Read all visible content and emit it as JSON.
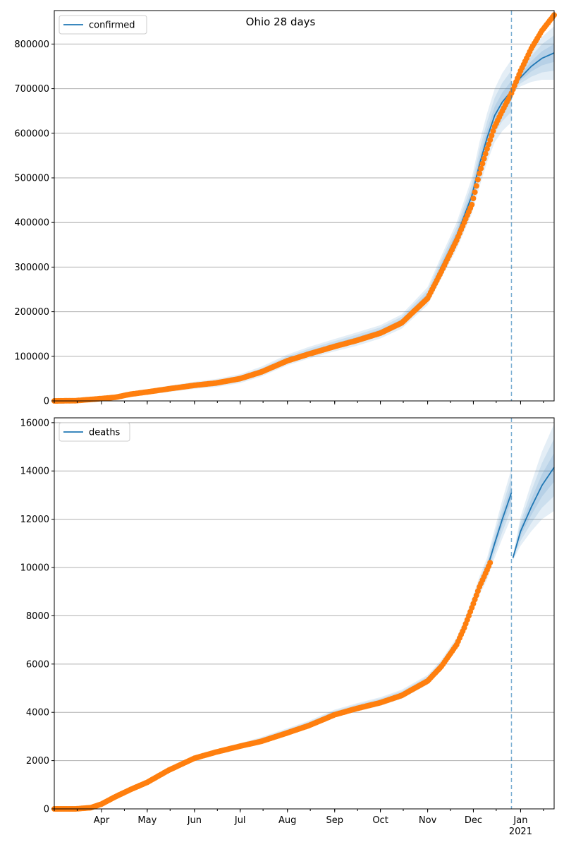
{
  "title": "Ohio 28 days",
  "colors": {
    "model": "#1f77b4",
    "observed": "#ff7f0e",
    "band": "#1f77b4",
    "grid": "#b0b0b0",
    "vline": "#1f77b4"
  },
  "chart_data": [
    {
      "type": "line",
      "panel": "top",
      "legend": "confirmed",
      "legend_placement": "top-left",
      "ylim": [
        0,
        875000
      ],
      "yticks": [
        0,
        100000,
        200000,
        300000,
        400000,
        500000,
        600000,
        700000,
        800000
      ],
      "ytick_labels": [
        "0",
        "100000",
        "200000",
        "300000",
        "400000",
        "500000",
        "600000",
        "700000",
        "800000"
      ],
      "grid": "horizontal",
      "forecast_start": "2020-12-26",
      "observed": {
        "x": [
          "2020-03-01",
          "2020-03-15",
          "2020-03-31",
          "2020-04-10",
          "2020-04-20",
          "2020-05-01",
          "2020-05-15",
          "2020-06-01",
          "2020-06-15",
          "2020-07-01",
          "2020-07-15",
          "2020-08-01",
          "2020-08-15",
          "2020-09-01",
          "2020-09-15",
          "2020-10-01",
          "2020-10-15",
          "2020-11-01",
          "2020-11-10",
          "2020-11-20",
          "2020-11-30",
          "2020-12-05",
          "2020-12-10",
          "2020-12-15",
          "2020-12-20",
          "2020-12-26",
          "2021-01-01",
          "2021-01-08",
          "2021-01-15",
          "2021-01-23"
        ],
        "y": [
          0,
          500,
          5000,
          8000,
          15000,
          20000,
          27000,
          35000,
          40000,
          50000,
          65000,
          90000,
          105000,
          122000,
          135000,
          152000,
          175000,
          230000,
          290000,
          360000,
          440000,
          510000,
          565000,
          615000,
          650000,
          690000,
          740000,
          790000,
          830000,
          865000
        ]
      },
      "fit": {
        "x": [
          "2020-03-01",
          "2020-03-15",
          "2020-03-31",
          "2020-04-10",
          "2020-04-20",
          "2020-05-01",
          "2020-05-15",
          "2020-06-01",
          "2020-06-15",
          "2020-07-01",
          "2020-07-15",
          "2020-08-01",
          "2020-08-15",
          "2020-09-01",
          "2020-09-15",
          "2020-10-01",
          "2020-10-15",
          "2020-11-01",
          "2020-11-10",
          "2020-11-20",
          "2020-11-30",
          "2020-12-05",
          "2020-12-10",
          "2020-12-15",
          "2020-12-20",
          "2020-12-26"
        ],
        "y": [
          0,
          500,
          5000,
          9000,
          15000,
          20000,
          27000,
          35000,
          40000,
          50000,
          66000,
          92000,
          108000,
          125000,
          138000,
          155000,
          178000,
          235000,
          300000,
          370000,
          460000,
          530000,
          590000,
          640000,
          670000,
          695000
        ],
        "band_half_width": [
          0,
          2000,
          3000,
          4000,
          5000,
          6000,
          7000,
          8000,
          9000,
          10000,
          11000,
          12000,
          13000,
          14000,
          15000,
          15000,
          16000,
          20000,
          25000,
          30000,
          40000,
          50000,
          55000,
          60000,
          65000,
          70000
        ]
      },
      "forecast": {
        "x": [
          "2020-12-26",
          "2021-01-01",
          "2021-01-08",
          "2021-01-15",
          "2021-01-23"
        ],
        "y": [
          700000,
          725000,
          750000,
          768000,
          780000
        ],
        "band_half_width": [
          10000,
          20000,
          35000,
          48000,
          60000
        ]
      }
    },
    {
      "type": "line",
      "panel": "bottom",
      "legend": "deaths",
      "legend_placement": "top-left",
      "ylim": [
        0,
        16200
      ],
      "yticks": [
        0,
        2000,
        4000,
        6000,
        8000,
        10000,
        12000,
        14000,
        16000
      ],
      "ytick_labels": [
        "0",
        "2000",
        "4000",
        "6000",
        "8000",
        "10000",
        "12000",
        "14000",
        "16000"
      ],
      "xticks": [
        "2020-04-01",
        "2020-05-01",
        "2020-06-01",
        "2020-07-01",
        "2020-08-01",
        "2020-09-01",
        "2020-10-01",
        "2020-11-01",
        "2020-12-01",
        "2021-01-01"
      ],
      "xtick_labels": [
        "Apr",
        "May",
        "Jun",
        "Jul",
        "Aug",
        "Sep",
        "Oct",
        "Nov",
        "Dec",
        "Jan"
      ],
      "xtick_year_label": "2021",
      "grid": "horizontal",
      "forecast_start": "2020-12-26",
      "observed": {
        "x": [
          "2020-03-01",
          "2020-03-15",
          "2020-03-25",
          "2020-04-01",
          "2020-04-10",
          "2020-04-20",
          "2020-05-01",
          "2020-05-15",
          "2020-06-01",
          "2020-06-15",
          "2020-07-01",
          "2020-07-15",
          "2020-08-01",
          "2020-08-15",
          "2020-09-01",
          "2020-09-15",
          "2020-10-01",
          "2020-10-15",
          "2020-11-01",
          "2020-11-10",
          "2020-11-20",
          "2020-11-25",
          "2020-12-01",
          "2020-12-05",
          "2020-12-10",
          "2020-12-12"
        ],
        "y": [
          0,
          0,
          50,
          200,
          500,
          800,
          1100,
          1600,
          2100,
          2350,
          2600,
          2800,
          3150,
          3450,
          3900,
          4150,
          4400,
          4700,
          5300,
          5900,
          6800,
          7500,
          8500,
          9200,
          9900,
          10200
        ]
      },
      "fit": {
        "x": [
          "2020-03-01",
          "2020-03-15",
          "2020-03-25",
          "2020-04-01",
          "2020-04-10",
          "2020-04-20",
          "2020-05-01",
          "2020-05-15",
          "2020-06-01",
          "2020-06-15",
          "2020-07-01",
          "2020-07-15",
          "2020-08-01",
          "2020-08-15",
          "2020-09-01",
          "2020-09-15",
          "2020-10-01",
          "2020-10-15",
          "2020-11-01",
          "2020-11-10",
          "2020-11-20",
          "2020-11-25",
          "2020-12-01",
          "2020-12-05",
          "2020-12-10",
          "2020-12-15",
          "2020-12-20",
          "2020-12-26"
        ],
        "y": [
          0,
          0,
          50,
          200,
          500,
          800,
          1100,
          1600,
          2100,
          2350,
          2600,
          2850,
          3200,
          3500,
          3950,
          4200,
          4450,
          4750,
          5350,
          5950,
          6850,
          7550,
          8550,
          9250,
          9950,
          11000,
          12000,
          13100
        ],
        "band_half_width": [
          0,
          20,
          40,
          60,
          80,
          100,
          100,
          100,
          100,
          110,
          120,
          130,
          140,
          150,
          160,
          170,
          180,
          190,
          200,
          220,
          250,
          280,
          320,
          380,
          450,
          600,
          800,
          1000
        ]
      },
      "forecast": {
        "x": [
          "2020-12-27",
          "2021-01-01",
          "2021-01-08",
          "2021-01-15",
          "2021-01-23"
        ],
        "y": [
          10400,
          11500,
          12500,
          13400,
          14150
        ],
        "band_half_width": [
          100,
          600,
          1000,
          1400,
          1800
        ]
      }
    }
  ]
}
